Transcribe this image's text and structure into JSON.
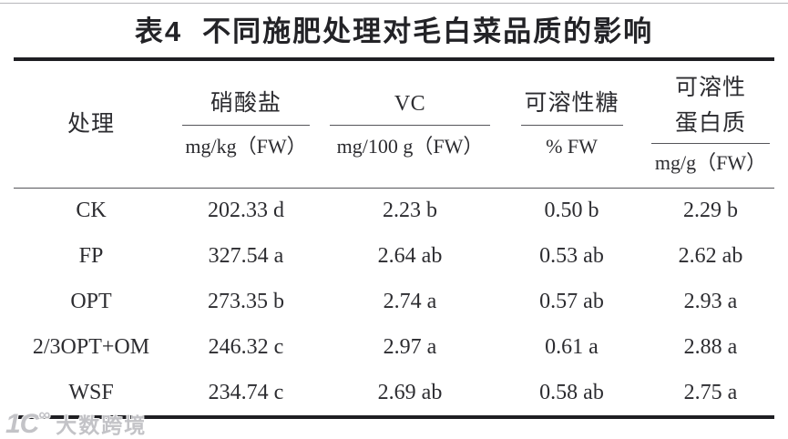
{
  "title": {
    "label": "表4",
    "text": "不同施肥处理对毛白菜品质的影响"
  },
  "table": {
    "columns": {
      "treatment": {
        "name": "处理"
      },
      "nitrate": {
        "name": "硝酸盐",
        "unit": "mg/kg（FW）"
      },
      "vc": {
        "name": "VC",
        "unit": "mg/100 g（FW）"
      },
      "sugar": {
        "name": "可溶性糖",
        "unit": "% FW"
      },
      "protein": {
        "name_line1": "可溶性",
        "name_line2": "蛋白质",
        "unit": "mg/g（FW）"
      }
    },
    "rows": [
      {
        "treatment": "CK",
        "nitrate": "202.33 d",
        "vc": "2.23 b",
        "sugar": "0.50 b",
        "protein": "2.29 b"
      },
      {
        "treatment": "FP",
        "nitrate": "327.54 a",
        "vc": "2.64 ab",
        "sugar": "0.53 ab",
        "protein": "2.62 ab"
      },
      {
        "treatment": "OPT",
        "nitrate": "273.35 b",
        "vc": "2.74 a",
        "sugar": "0.57 ab",
        "protein": "2.93 a"
      },
      {
        "treatment": "2/3OPT+OM",
        "nitrate": "246.32 c",
        "vc": "2.97 a",
        "sugar": "0.61 a",
        "protein": "2.88 a"
      },
      {
        "treatment": "WSF",
        "nitrate": "234.74 c",
        "vc": "2.69 ab",
        "sugar": "0.58 ab",
        "protein": "2.75 a"
      }
    ]
  },
  "chart_data": {
    "type": "table",
    "title": "表4 不同施肥处理对毛白菜品质的影响",
    "columns": [
      "处理",
      "硝酸盐 mg/kg（FW）",
      "VC mg/100 g（FW）",
      "可溶性糖 % FW",
      "可溶性蛋白质 mg/g（FW）"
    ],
    "rows": [
      [
        "CK",
        "202.33 d",
        "2.23 b",
        "0.50 b",
        "2.29 b"
      ],
      [
        "FP",
        "327.54 a",
        "2.64 ab",
        "0.53 ab",
        "2.62 ab"
      ],
      [
        "OPT",
        "273.35 b",
        "2.74 a",
        "0.57 ab",
        "2.93 a"
      ],
      [
        "2/3OPT+OM",
        "246.32 c",
        "2.97 a",
        "0.61 a",
        "2.88 a"
      ],
      [
        "WSF",
        "234.74 c",
        "2.69 ab",
        "0.58 ab",
        "2.75 a"
      ]
    ]
  },
  "watermark": {
    "mark": "1C",
    "infinity": "∞",
    "text": "大数跨境"
  },
  "colors": {
    "text": "#2c2c30",
    "border_thick": "#1f1f23",
    "border_thin": "#55555a",
    "top_rule": "#b6b6ba",
    "watermark": "#9e9ea4",
    "background": "#ffffff"
  }
}
